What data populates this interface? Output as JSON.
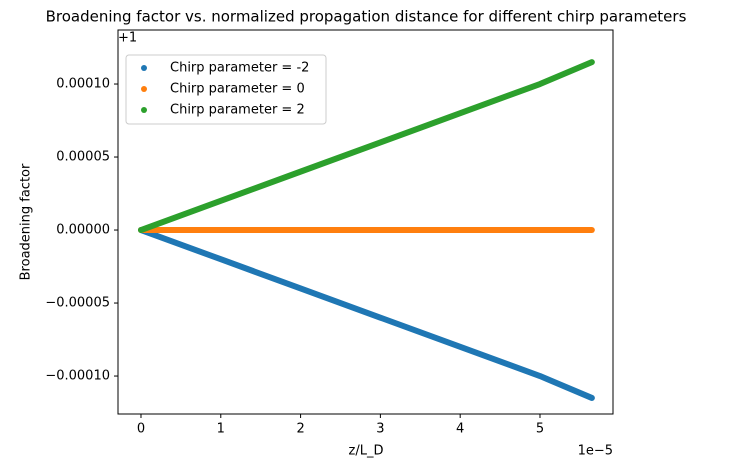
{
  "chart_data": {
    "type": "line",
    "title": "Broadening factor vs. normalized propagation distance for different chirp parameters",
    "x_label": "z/L_D",
    "y_label": "Broadening factor",
    "y_offset_text": "+1",
    "x_multiplier_text": "1e−5",
    "x": [
      0,
      1,
      2,
      3,
      4,
      5,
      5.65
    ],
    "series": [
      {
        "name": "Chirp parameter = -2",
        "color": "#1f77b4",
        "values": [
          0,
          -2e-05,
          -4e-05,
          -6e-05,
          -8e-05,
          -0.0001,
          -0.000115
        ]
      },
      {
        "name": "Chirp parameter = 0",
        "color": "#ff7f0e",
        "values": [
          0,
          0,
          0,
          0,
          0,
          0,
          0
        ]
      },
      {
        "name": "Chirp parameter = 2",
        "color": "#2ca02c",
        "values": [
          0,
          2e-05,
          4e-05,
          6e-05,
          8e-05,
          0.0001,
          0.000115
        ]
      }
    ],
    "xlim": [
      -0.288,
      5.915
    ],
    "xticks": [
      0,
      1,
      2,
      3,
      4,
      5
    ],
    "ylim": [
      -0.000126,
      0.000137
    ],
    "yticks": [
      {
        "value": -0.0001,
        "label": "−0.00010"
      },
      {
        "value": -5e-05,
        "label": "−0.00005"
      },
      {
        "value": 0,
        "label": "0.00000"
      },
      {
        "value": 5e-05,
        "label": "0.00005"
      },
      {
        "value": 0.0001,
        "label": "0.00010"
      }
    ],
    "grid": false,
    "legend": "upper left"
  }
}
